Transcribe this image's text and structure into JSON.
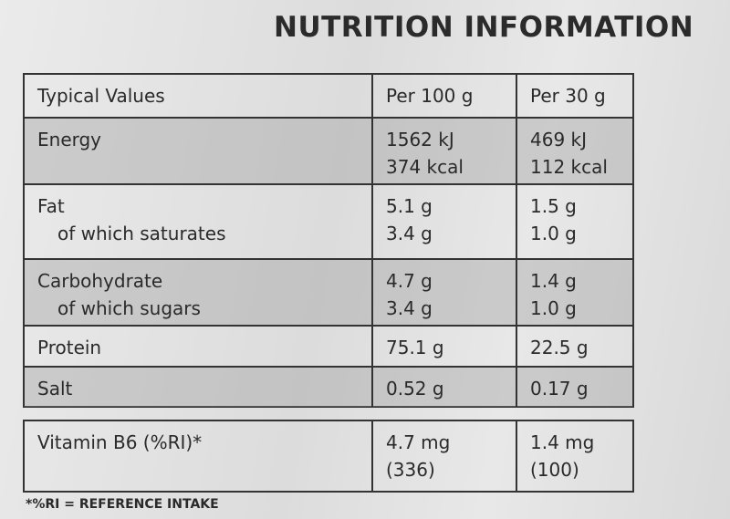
{
  "header": {
    "title": "NUTRITION INFORMATION"
  },
  "table": {
    "header": [
      "Typical Values",
      "Per 100 g",
      "Per 30 g"
    ],
    "rows": [
      [
        [
          "Energy"
        ],
        [
          "1562 kJ",
          "374 kcal"
        ],
        [
          "469 kJ",
          "112 kcal"
        ]
      ],
      [
        [
          "Fat",
          "of which saturates"
        ],
        [
          "5.1 g",
          "3.4 g"
        ],
        [
          "1.5 g",
          "1.0 g"
        ]
      ],
      [
        [
          "Carbohydrate",
          "of which sugars"
        ],
        [
          "4.7 g",
          "3.4 g"
        ],
        [
          "1.4 g",
          "1.0 g"
        ]
      ],
      [
        [
          "Protein"
        ],
        [
          "75.1 g"
        ],
        [
          "22.5 g"
        ]
      ],
      [
        [
          "Salt"
        ],
        [
          "0.52 g"
        ],
        [
          "0.17 g"
        ]
      ]
    ]
  },
  "vitamins": {
    "rows": [
      [
        [
          "Vitamin B6 (%RI)*"
        ],
        [
          "4.7 mg",
          "(336)"
        ],
        [
          "1.4 mg",
          "(100)"
        ]
      ]
    ]
  },
  "footnote": "*%RI = REFERENCE INTAKE"
}
